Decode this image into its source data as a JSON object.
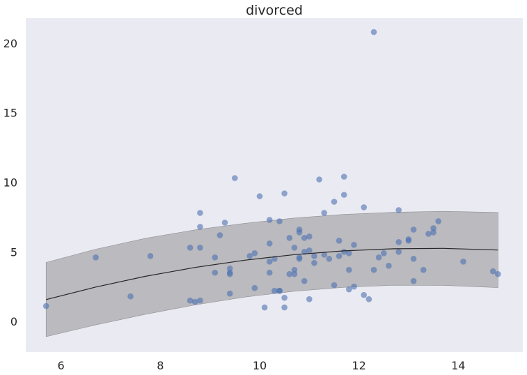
{
  "chart_data": {
    "type": "scatter",
    "title": "divorced",
    "xlabel": "",
    "ylabel": "",
    "xlim": [
      5.29,
      15.3
    ],
    "ylim": [
      -2.2,
      21.8
    ],
    "grid": false,
    "background": "#eaeaf2",
    "x_ticks": [
      6,
      8,
      10,
      12,
      14
    ],
    "y_ticks": [
      0,
      5,
      10,
      15,
      20
    ],
    "points": [
      [
        5.7,
        1.1
      ],
      [
        6.7,
        4.6
      ],
      [
        7.4,
        1.8
      ],
      [
        7.8,
        4.7
      ],
      [
        8.6,
        5.3
      ],
      [
        8.6,
        1.5
      ],
      [
        8.7,
        1.4
      ],
      [
        8.8,
        7.8
      ],
      [
        8.8,
        6.8
      ],
      [
        8.8,
        5.3
      ],
      [
        8.8,
        1.5
      ],
      [
        9.1,
        4.6
      ],
      [
        9.1,
        3.5
      ],
      [
        9.2,
        6.2
      ],
      [
        9.3,
        7.1
      ],
      [
        9.4,
        3.8
      ],
      [
        9.4,
        3.5
      ],
      [
        9.4,
        3.4
      ],
      [
        9.4,
        2.0
      ],
      [
        9.5,
        10.3
      ],
      [
        9.8,
        4.7
      ],
      [
        9.9,
        4.9
      ],
      [
        9.9,
        2.4
      ],
      [
        10.0,
        9.0
      ],
      [
        10.1,
        1.0
      ],
      [
        10.2,
        7.3
      ],
      [
        10.2,
        5.6
      ],
      [
        10.2,
        4.3
      ],
      [
        10.2,
        3.5
      ],
      [
        10.3,
        4.5
      ],
      [
        10.3,
        2.2
      ],
      [
        10.4,
        7.2
      ],
      [
        10.4,
        2.2
      ],
      [
        10.4,
        2.2
      ],
      [
        10.5,
        9.2
      ],
      [
        10.5,
        1.7
      ],
      [
        10.5,
        1.0
      ],
      [
        10.6,
        6.0
      ],
      [
        10.6,
        3.4
      ],
      [
        10.7,
        5.3
      ],
      [
        10.7,
        3.7
      ],
      [
        10.7,
        3.4
      ],
      [
        10.8,
        6.6
      ],
      [
        10.8,
        6.4
      ],
      [
        10.8,
        4.6
      ],
      [
        10.8,
        4.5
      ],
      [
        10.9,
        6.0
      ],
      [
        10.9,
        5.0
      ],
      [
        10.9,
        2.9
      ],
      [
        11.0,
        6.1
      ],
      [
        11.0,
        5.1
      ],
      [
        11.0,
        1.6
      ],
      [
        11.1,
        4.7
      ],
      [
        11.1,
        4.2
      ],
      [
        11.2,
        10.2
      ],
      [
        11.3,
        7.8
      ],
      [
        11.3,
        4.8
      ],
      [
        11.4,
        4.5
      ],
      [
        11.5,
        8.6
      ],
      [
        11.5,
        2.6
      ],
      [
        11.6,
        5.8
      ],
      [
        11.6,
        4.7
      ],
      [
        11.7,
        10.4
      ],
      [
        11.7,
        9.1
      ],
      [
        11.7,
        5.0
      ],
      [
        11.8,
        4.9
      ],
      [
        11.8,
        3.7
      ],
      [
        11.8,
        2.3
      ],
      [
        11.9,
        5.5
      ],
      [
        11.9,
        2.5
      ],
      [
        12.1,
        8.2
      ],
      [
        12.1,
        1.9
      ],
      [
        12.2,
        1.6
      ],
      [
        12.3,
        20.8
      ],
      [
        12.3,
        3.7
      ],
      [
        12.4,
        4.6
      ],
      [
        12.5,
        4.9
      ],
      [
        12.6,
        4.0
      ],
      [
        12.8,
        8.0
      ],
      [
        12.8,
        5.7
      ],
      [
        12.8,
        5.0
      ],
      [
        13.0,
        5.9
      ],
      [
        13.0,
        5.8
      ],
      [
        13.1,
        6.6
      ],
      [
        13.1,
        4.5
      ],
      [
        13.1,
        2.9
      ],
      [
        13.3,
        3.7
      ],
      [
        13.4,
        6.3
      ],
      [
        13.5,
        6.7
      ],
      [
        13.5,
        6.4
      ],
      [
        13.6,
        7.2
      ],
      [
        14.1,
        4.3
      ],
      [
        14.7,
        3.6
      ],
      [
        14.8,
        3.4
      ]
    ],
    "fit_line": {
      "x": [
        5.7,
        6.7,
        7.7,
        8.7,
        9.7,
        10.7,
        11.7,
        12.7,
        13.7,
        14.8
      ],
      "y": [
        1.57,
        2.47,
        3.24,
        3.88,
        4.4,
        4.8,
        5.07,
        5.22,
        5.25,
        5.13
      ]
    },
    "band": {
      "x": [
        5.7,
        6.7,
        7.7,
        8.7,
        9.7,
        10.7,
        11.7,
        12.7,
        13.7,
        14.8
      ],
      "lower": [
        -1.1,
        -0.25,
        0.51,
        1.18,
        1.75,
        2.17,
        2.45,
        2.6,
        2.59,
        2.43
      ],
      "upper": [
        4.24,
        5.19,
        5.97,
        6.58,
        7.05,
        7.43,
        7.69,
        7.84,
        7.91,
        7.83
      ]
    },
    "colors": {
      "points": "#4c72b0",
      "band": "#a9a9ad",
      "line": "#262626"
    }
  }
}
